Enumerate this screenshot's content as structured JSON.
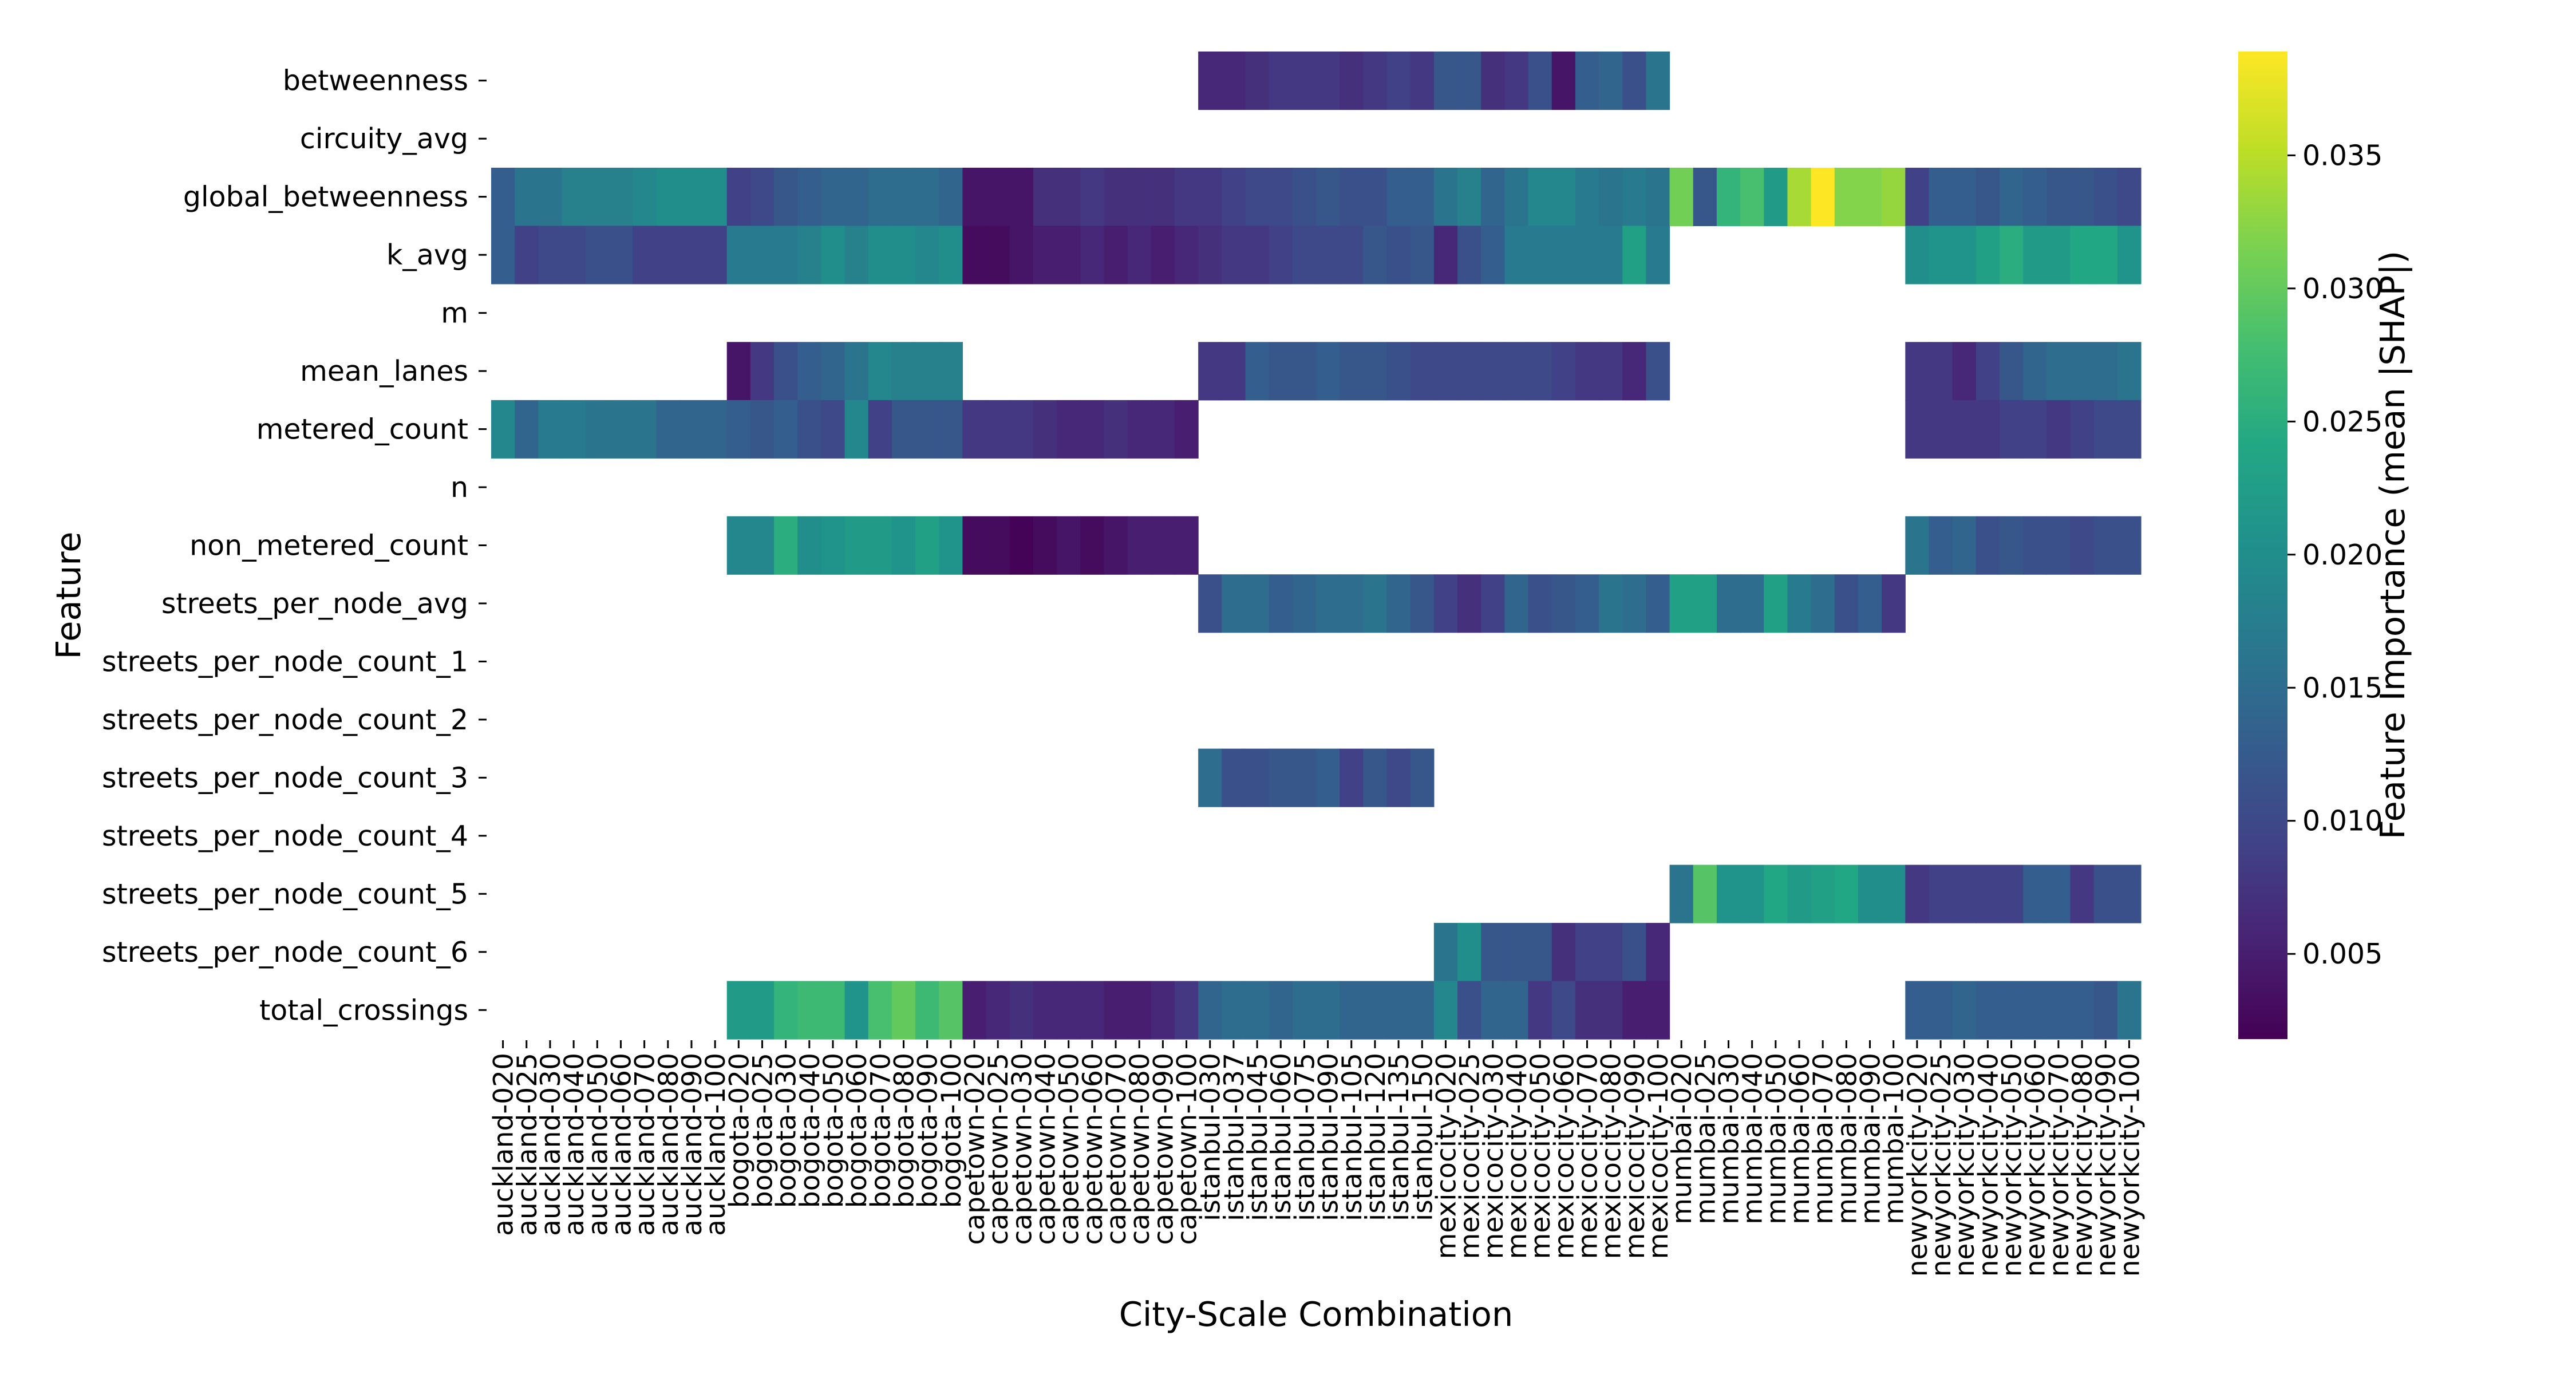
{
  "chart_data": {
    "type": "heatmap",
    "title": "",
    "xlabel": "City-Scale Combination",
    "ylabel": "Feature",
    "colorbar_label": "Feature Importance (mean |SHAP|)",
    "colormap": "viridis",
    "vmin": 0.0018,
    "vmax": 0.0389,
    "colorbar_ticks": [
      0.005,
      0.01,
      0.015,
      0.02,
      0.025,
      0.03,
      0.035
    ],
    "colorbar_tick_labels": [
      "0.005",
      "0.010",
      "0.015",
      "0.020",
      "0.025",
      "0.030",
      "0.035"
    ],
    "missing_color": "#ffffff",
    "rows": [
      "betweenness",
      "circuity_avg",
      "global_betweenness",
      "k_avg",
      "m",
      "mean_lanes",
      "metered_count",
      "n",
      "non_metered_count",
      "streets_per_node_avg",
      "streets_per_node_count_1",
      "streets_per_node_count_2",
      "streets_per_node_count_3",
      "streets_per_node_count_4",
      "streets_per_node_count_5",
      "streets_per_node_count_6",
      "total_crossings"
    ],
    "columns": [
      "auckland-020",
      "auckland-025",
      "auckland-030",
      "auckland-040",
      "auckland-050",
      "auckland-060",
      "auckland-070",
      "auckland-080",
      "auckland-090",
      "auckland-100",
      "bogota-020",
      "bogota-025",
      "bogota-030",
      "bogota-040",
      "bogota-050",
      "bogota-060",
      "bogota-070",
      "bogota-080",
      "bogota-090",
      "bogota-100",
      "capetown-020",
      "capetown-025",
      "capetown-030",
      "capetown-040",
      "capetown-050",
      "capetown-060",
      "capetown-070",
      "capetown-080",
      "capetown-090",
      "capetown-100",
      "istanbul-030",
      "istanbul-037",
      "istanbul-045",
      "istanbul-060",
      "istanbul-075",
      "istanbul-090",
      "istanbul-105",
      "istanbul-120",
      "istanbul-135",
      "istanbul-150",
      "mexicocity-020",
      "mexicocity-025",
      "mexicocity-030",
      "mexicocity-040",
      "mexicocity-050",
      "mexicocity-060",
      "mexicocity-070",
      "mexicocity-080",
      "mexicocity-090",
      "mexicocity-100",
      "mumbai-020",
      "mumbai-025",
      "mumbai-030",
      "mumbai-040",
      "mumbai-050",
      "mumbai-060",
      "mumbai-070",
      "mumbai-080",
      "mumbai-090",
      "mumbai-100",
      "newyorkcity-020",
      "newyorkcity-025",
      "newyorkcity-030",
      "newyorkcity-040",
      "newyorkcity-050",
      "newyorkcity-060",
      "newyorkcity-070",
      "newyorkcity-080",
      "newyorkcity-090",
      "newyorkcity-100"
    ],
    "values": [
      [
        null,
        null,
        null,
        null,
        null,
        null,
        null,
        null,
        null,
        null,
        null,
        null,
        null,
        null,
        null,
        null,
        null,
        null,
        null,
        null,
        null,
        null,
        null,
        null,
        null,
        null,
        null,
        null,
        null,
        null,
        0.006,
        0.006,
        0.007,
        0.008,
        0.008,
        0.008,
        0.007,
        0.008,
        0.009,
        0.008,
        0.012,
        0.012,
        0.007,
        0.008,
        0.011,
        0.004,
        0.013,
        0.014,
        0.011,
        0.016,
        null,
        null,
        null,
        null,
        null,
        null,
        null,
        null,
        null,
        null,
        null,
        null,
        null,
        null,
        null,
        null,
        null,
        null,
        null,
        null
      ],
      [
        null,
        null,
        null,
        null,
        null,
        null,
        null,
        null,
        null,
        null,
        null,
        null,
        null,
        null,
        null,
        null,
        null,
        null,
        null,
        null,
        null,
        null,
        null,
        null,
        null,
        null,
        null,
        null,
        null,
        null,
        null,
        null,
        null,
        null,
        null,
        null,
        null,
        null,
        null,
        null,
        null,
        null,
        null,
        null,
        null,
        null,
        null,
        null,
        null,
        null,
        null,
        null,
        null,
        null,
        null,
        null,
        null,
        null,
        null,
        null,
        null,
        null,
        null,
        null,
        null,
        null,
        null,
        null,
        null,
        null
      ],
      [
        0.013,
        0.016,
        0.016,
        0.018,
        0.018,
        0.018,
        0.019,
        0.02,
        0.02,
        0.02,
        0.009,
        0.01,
        0.012,
        0.013,
        0.014,
        0.014,
        0.015,
        0.015,
        0.015,
        0.014,
        0.004,
        0.004,
        0.004,
        0.007,
        0.007,
        0.008,
        0.007,
        0.007,
        0.007,
        0.008,
        0.008,
        0.009,
        0.01,
        0.01,
        0.011,
        0.012,
        0.011,
        0.011,
        0.013,
        0.013,
        0.016,
        0.018,
        0.014,
        0.016,
        0.019,
        0.019,
        0.017,
        0.016,
        0.017,
        0.016,
        0.031,
        0.012,
        0.026,
        0.028,
        0.022,
        0.034,
        0.039,
        0.032,
        0.032,
        0.033,
        0.009,
        0.013,
        0.013,
        0.012,
        0.014,
        0.013,
        0.012,
        0.012,
        0.011,
        0.01
      ],
      [
        0.013,
        0.009,
        0.01,
        0.01,
        0.011,
        0.011,
        0.009,
        0.009,
        0.009,
        0.009,
        0.017,
        0.017,
        0.017,
        0.018,
        0.02,
        0.018,
        0.02,
        0.02,
        0.019,
        0.02,
        0.003,
        0.003,
        0.004,
        0.005,
        0.005,
        0.006,
        0.005,
        0.006,
        0.005,
        0.006,
        0.007,
        0.008,
        0.008,
        0.009,
        0.01,
        0.01,
        0.01,
        0.012,
        0.011,
        0.012,
        0.006,
        0.011,
        0.013,
        0.017,
        0.017,
        0.017,
        0.017,
        0.017,
        0.023,
        0.017,
        null,
        null,
        null,
        null,
        null,
        null,
        null,
        null,
        null,
        null,
        0.02,
        0.021,
        0.021,
        0.023,
        0.025,
        0.022,
        0.022,
        0.024,
        0.024,
        0.021
      ],
      [
        null,
        null,
        null,
        null,
        null,
        null,
        null,
        null,
        null,
        null,
        null,
        null,
        null,
        null,
        null,
        null,
        null,
        null,
        null,
        null,
        null,
        null,
        null,
        null,
        null,
        null,
        null,
        null,
        null,
        null,
        null,
        null,
        null,
        null,
        null,
        null,
        null,
        null,
        null,
        null,
        null,
        null,
        null,
        null,
        null,
        null,
        null,
        null,
        null,
        null,
        null,
        null,
        null,
        null,
        null,
        null,
        null,
        null,
        null,
        null,
        null,
        null,
        null,
        null,
        null,
        null,
        null,
        null,
        null,
        null
      ],
      [
        null,
        null,
        null,
        null,
        null,
        null,
        null,
        null,
        null,
        null,
        0.004,
        0.008,
        0.011,
        0.013,
        0.014,
        0.016,
        0.019,
        0.018,
        0.018,
        0.018,
        null,
        null,
        null,
        null,
        null,
        null,
        null,
        null,
        null,
        null,
        0.008,
        0.008,
        0.013,
        0.012,
        0.012,
        0.013,
        0.012,
        0.012,
        0.011,
        0.01,
        0.01,
        0.01,
        0.01,
        0.01,
        0.01,
        0.009,
        0.008,
        0.008,
        0.006,
        0.011,
        null,
        null,
        null,
        null,
        null,
        null,
        null,
        null,
        null,
        null,
        0.008,
        0.008,
        0.006,
        0.009,
        0.012,
        0.014,
        0.015,
        0.015,
        0.015,
        0.016
      ],
      [
        0.019,
        0.014,
        0.017,
        0.017,
        0.016,
        0.016,
        0.016,
        0.014,
        0.014,
        0.014,
        0.013,
        0.012,
        0.013,
        0.011,
        0.01,
        0.019,
        0.009,
        0.012,
        0.012,
        0.012,
        0.008,
        0.008,
        0.008,
        0.007,
        0.006,
        0.006,
        0.007,
        0.006,
        0.006,
        0.005,
        null,
        null,
        null,
        null,
        null,
        null,
        null,
        null,
        null,
        null,
        null,
        null,
        null,
        null,
        null,
        null,
        null,
        null,
        null,
        null,
        null,
        null,
        null,
        null,
        null,
        null,
        null,
        null,
        null,
        null,
        0.008,
        0.008,
        0.008,
        0.008,
        0.009,
        0.009,
        0.008,
        0.009,
        0.01,
        0.01
      ],
      [
        null,
        null,
        null,
        null,
        null,
        null,
        null,
        null,
        null,
        null,
        null,
        null,
        null,
        null,
        null,
        null,
        null,
        null,
        null,
        null,
        null,
        null,
        null,
        null,
        null,
        null,
        null,
        null,
        null,
        null,
        null,
        null,
        null,
        null,
        null,
        null,
        null,
        null,
        null,
        null,
        null,
        null,
        null,
        null,
        null,
        null,
        null,
        null,
        null,
        null,
        null,
        null,
        null,
        null,
        null,
        null,
        null,
        null,
        null,
        null,
        null,
        null,
        null,
        null,
        null,
        null,
        null,
        null,
        null,
        null
      ],
      [
        null,
        null,
        null,
        null,
        null,
        null,
        null,
        null,
        null,
        null,
        0.019,
        0.019,
        0.025,
        0.02,
        0.021,
        0.022,
        0.022,
        0.021,
        0.023,
        0.021,
        0.003,
        0.003,
        0.002,
        0.003,
        0.004,
        0.003,
        0.004,
        0.005,
        0.005,
        0.005,
        null,
        null,
        null,
        null,
        null,
        null,
        null,
        null,
        null,
        null,
        null,
        null,
        null,
        null,
        null,
        null,
        null,
        null,
        null,
        null,
        null,
        null,
        null,
        null,
        null,
        null,
        null,
        null,
        null,
        null,
        0.016,
        0.013,
        0.014,
        0.011,
        0.012,
        0.011,
        0.011,
        0.01,
        0.011,
        0.011
      ],
      [
        null,
        null,
        null,
        null,
        null,
        null,
        null,
        null,
        null,
        null,
        null,
        null,
        null,
        null,
        null,
        null,
        null,
        null,
        null,
        null,
        null,
        null,
        null,
        null,
        null,
        null,
        null,
        null,
        null,
        null,
        0.011,
        0.015,
        0.015,
        0.013,
        0.014,
        0.015,
        0.015,
        0.016,
        0.014,
        0.012,
        0.009,
        0.007,
        0.009,
        0.014,
        0.011,
        0.012,
        0.013,
        0.016,
        0.015,
        0.013,
        0.023,
        0.023,
        0.015,
        0.015,
        0.023,
        0.017,
        0.015,
        0.011,
        0.013,
        0.008,
        null,
        null,
        null,
        null,
        null,
        null,
        null,
        null,
        null,
        null
      ],
      [
        null,
        null,
        null,
        null,
        null,
        null,
        null,
        null,
        null,
        null,
        null,
        null,
        null,
        null,
        null,
        null,
        null,
        null,
        null,
        null,
        null,
        null,
        null,
        null,
        null,
        null,
        null,
        null,
        null,
        null,
        null,
        null,
        null,
        null,
        null,
        null,
        null,
        null,
        null,
        null,
        null,
        null,
        null,
        null,
        null,
        null,
        null,
        null,
        null,
        null,
        null,
        null,
        null,
        null,
        null,
        null,
        null,
        null,
        null,
        null,
        null,
        null,
        null,
        null,
        null,
        null,
        null,
        null,
        null,
        null
      ],
      [
        null,
        null,
        null,
        null,
        null,
        null,
        null,
        null,
        null,
        null,
        null,
        null,
        null,
        null,
        null,
        null,
        null,
        null,
        null,
        null,
        null,
        null,
        null,
        null,
        null,
        null,
        null,
        null,
        null,
        null,
        null,
        null,
        null,
        null,
        null,
        null,
        null,
        null,
        null,
        null,
        null,
        null,
        null,
        null,
        null,
        null,
        null,
        null,
        null,
        null,
        null,
        null,
        null,
        null,
        null,
        null,
        null,
        null,
        null,
        null,
        null,
        null,
        null,
        null,
        null,
        null,
        null,
        null,
        null,
        null
      ],
      [
        null,
        null,
        null,
        null,
        null,
        null,
        null,
        null,
        null,
        null,
        null,
        null,
        null,
        null,
        null,
        null,
        null,
        null,
        null,
        null,
        null,
        null,
        null,
        null,
        null,
        null,
        null,
        null,
        null,
        null,
        0.015,
        0.011,
        0.011,
        0.012,
        0.012,
        0.013,
        0.009,
        0.012,
        0.01,
        0.012,
        null,
        null,
        null,
        null,
        null,
        null,
        null,
        null,
        null,
        null,
        null,
        null,
        null,
        null,
        null,
        null,
        null,
        null,
        null,
        null,
        null,
        null,
        null,
        null,
        null,
        null,
        null,
        null,
        null,
        null
      ],
      [
        null,
        null,
        null,
        null,
        null,
        null,
        null,
        null,
        null,
        null,
        null,
        null,
        null,
        null,
        null,
        null,
        null,
        null,
        null,
        null,
        null,
        null,
        null,
        null,
        null,
        null,
        null,
        null,
        null,
        null,
        null,
        null,
        null,
        null,
        null,
        null,
        null,
        null,
        null,
        null,
        null,
        null,
        null,
        null,
        null,
        null,
        null,
        null,
        null,
        null,
        null,
        null,
        null,
        null,
        null,
        null,
        null,
        null,
        null,
        null,
        null,
        null,
        null,
        null,
        null,
        null,
        null,
        null,
        null,
        null
      ],
      [
        null,
        null,
        null,
        null,
        null,
        null,
        null,
        null,
        null,
        null,
        null,
        null,
        null,
        null,
        null,
        null,
        null,
        null,
        null,
        null,
        null,
        null,
        null,
        null,
        null,
        null,
        null,
        null,
        null,
        null,
        null,
        null,
        null,
        null,
        null,
        null,
        null,
        null,
        null,
        null,
        null,
        null,
        null,
        null,
        null,
        null,
        null,
        null,
        null,
        null,
        0.016,
        0.029,
        0.021,
        0.021,
        0.024,
        0.022,
        0.023,
        0.024,
        0.02,
        0.02,
        0.008,
        0.009,
        0.009,
        0.009,
        0.009,
        0.013,
        0.013,
        0.008,
        0.011,
        0.011
      ],
      [
        null,
        null,
        null,
        null,
        null,
        null,
        null,
        null,
        null,
        null,
        null,
        null,
        null,
        null,
        null,
        null,
        null,
        null,
        null,
        null,
        null,
        null,
        null,
        null,
        null,
        null,
        null,
        null,
        null,
        null,
        null,
        null,
        null,
        null,
        null,
        null,
        null,
        null,
        null,
        null,
        0.016,
        0.02,
        0.012,
        0.012,
        0.012,
        0.007,
        0.009,
        0.009,
        0.011,
        0.006,
        null,
        null,
        null,
        null,
        null,
        null,
        null,
        null,
        null,
        null,
        null,
        null,
        null,
        null,
        null,
        null,
        null,
        null,
        null,
        null
      ],
      [
        null,
        null,
        null,
        null,
        null,
        null,
        null,
        null,
        null,
        null,
        0.022,
        0.022,
        0.026,
        0.027,
        0.027,
        0.021,
        0.028,
        0.03,
        0.027,
        0.029,
        0.005,
        0.006,
        0.007,
        0.006,
        0.006,
        0.006,
        0.005,
        0.005,
        0.006,
        0.008,
        0.014,
        0.015,
        0.015,
        0.014,
        0.015,
        0.015,
        0.014,
        0.014,
        0.014,
        0.014,
        0.019,
        0.011,
        0.014,
        0.014,
        0.008,
        0.01,
        0.007,
        0.007,
        0.005,
        0.005,
        null,
        null,
        null,
        null,
        null,
        null,
        null,
        null,
        null,
        null,
        0.013,
        0.013,
        0.014,
        0.013,
        0.013,
        0.013,
        0.013,
        0.013,
        0.012,
        0.016
      ]
    ]
  }
}
